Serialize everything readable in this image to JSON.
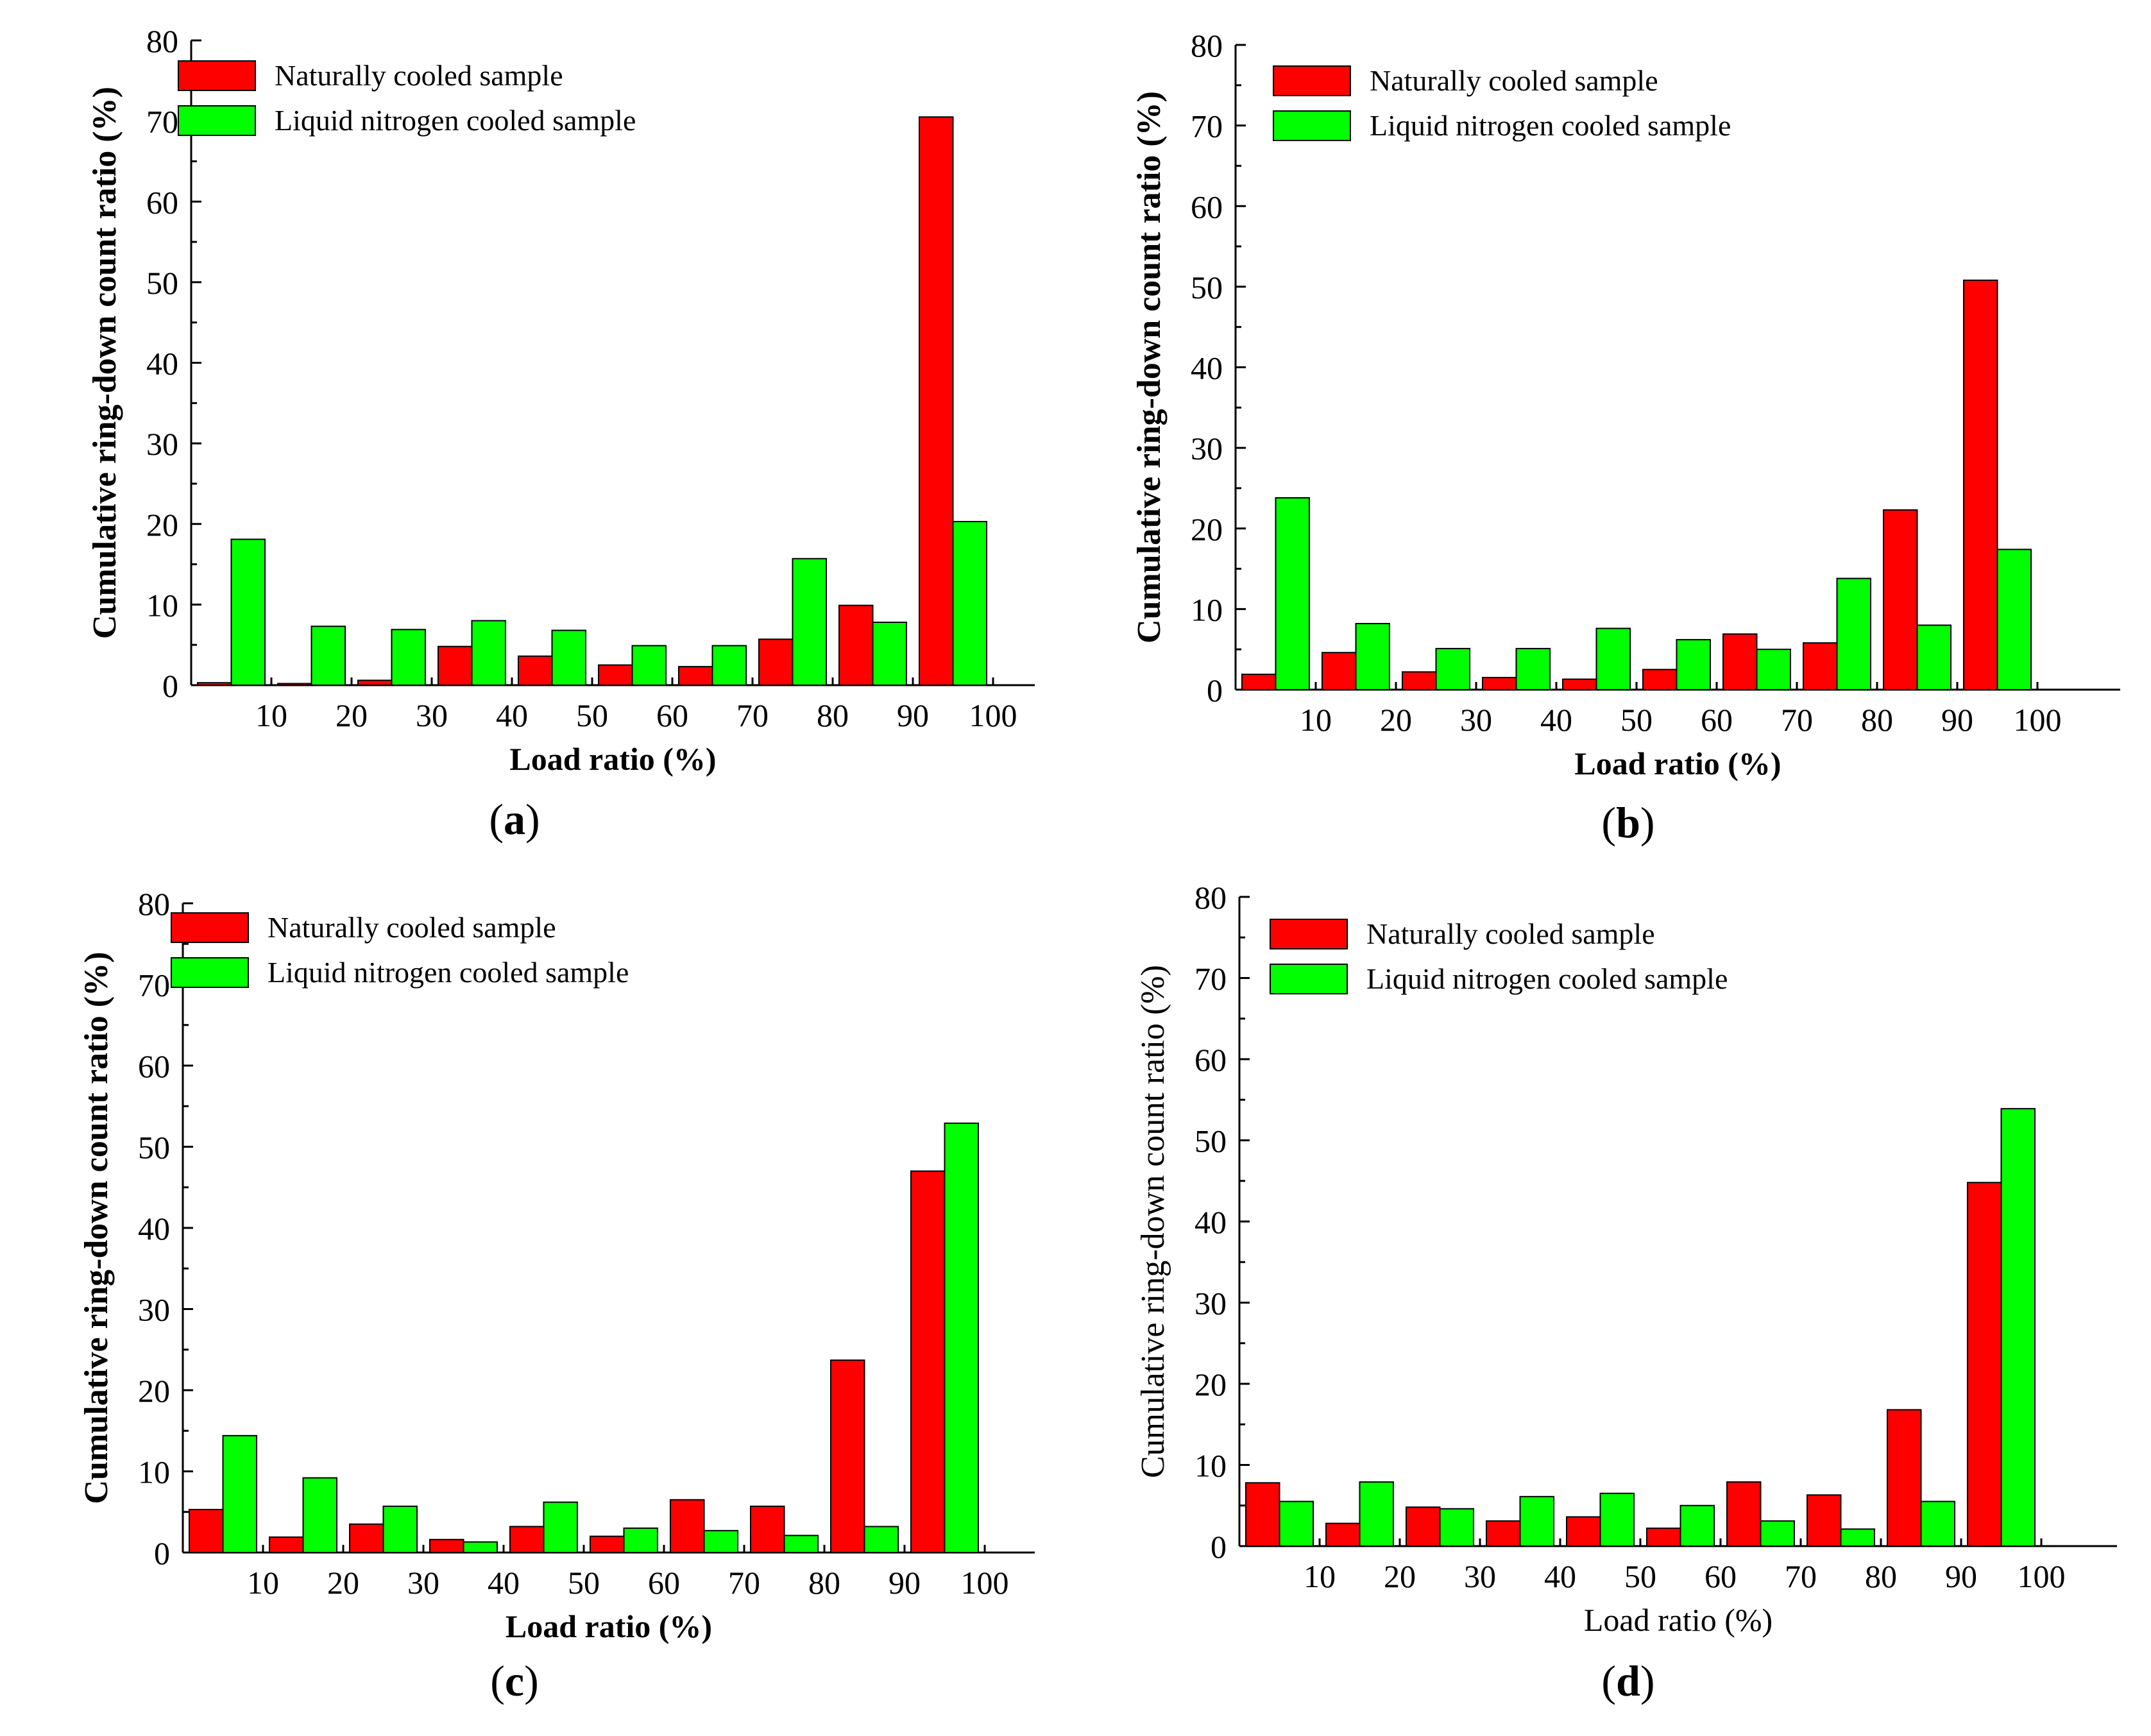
{
  "colors": {
    "naturally_cooled": "#ff0000",
    "liquid_nitrogen_cooled": "#00ff00"
  },
  "chart_data": [
    {
      "panel": "(a)",
      "type": "bar",
      "ylabel": "Cumulative ring-down count ratio (%)",
      "xlabel": "Load ratio (%)",
      "label_weight": "bold",
      "ylim": [
        0,
        80
      ],
      "yticks": [
        0,
        10,
        20,
        30,
        40,
        50,
        60,
        70,
        80
      ],
      "xticks": [
        "10",
        "20",
        "30",
        "40",
        "50",
        "60",
        "70",
        "80",
        "90",
        "100"
      ],
      "series": [
        {
          "name": "Naturally cooled sample",
          "color": "#ff0000",
          "values": [
            0.3,
            0.2,
            0.6,
            4.8,
            3.6,
            2.5,
            2.3,
            5.7,
            9.9,
            70.5
          ]
        },
        {
          "name": "Liquid nitrogen cooled sample",
          "color": "#00ff00",
          "values": [
            18.1,
            7.3,
            6.9,
            8.0,
            6.8,
            4.9,
            4.9,
            15.7,
            7.8,
            20.3
          ]
        }
      ]
    },
    {
      "panel": "(b)",
      "type": "bar",
      "ylabel": "Cumulative ring-down count ratio (%)",
      "xlabel": "Load ratio (%)",
      "label_weight": "bold",
      "ylim": [
        0,
        80
      ],
      "yticks": [
        0,
        10,
        20,
        30,
        40,
        50,
        60,
        70,
        80
      ],
      "xticks": [
        "10",
        "20",
        "30",
        "40",
        "50",
        "60",
        "70",
        "80",
        "90",
        "100"
      ],
      "series": [
        {
          "name": "Naturally cooled sample",
          "color": "#ff0000",
          "values": [
            1.9,
            4.6,
            2.2,
            1.5,
            1.3,
            2.5,
            6.9,
            5.8,
            22.3,
            50.8
          ]
        },
        {
          "name": "Liquid nitrogen cooled sample",
          "color": "#00ff00",
          "values": [
            23.8,
            8.2,
            5.1,
            5.1,
            7.6,
            6.2,
            5.0,
            13.8,
            8.0,
            17.4
          ]
        }
      ]
    },
    {
      "panel": "(c)",
      "type": "bar",
      "ylabel": "Cumulative ring-down count ratio (%)",
      "xlabel": "Load ratio (%)",
      "label_weight": "bold",
      "ylim": [
        0,
        80
      ],
      "yticks": [
        0,
        10,
        20,
        30,
        40,
        50,
        60,
        70,
        80
      ],
      "xticks": [
        "10",
        "20",
        "30",
        "40",
        "50",
        "60",
        "70",
        "80",
        "90",
        "100"
      ],
      "series": [
        {
          "name": "Naturally cooled sample",
          "color": "#ff0000",
          "values": [
            5.3,
            1.9,
            3.5,
            1.6,
            3.2,
            2.0,
            6.5,
            5.7,
            23.7,
            47.0
          ]
        },
        {
          "name": "Liquid nitrogen cooled sample",
          "color": "#00ff00",
          "values": [
            14.4,
            9.2,
            5.7,
            1.3,
            6.2,
            3.0,
            2.7,
            2.1,
            3.2,
            52.9
          ]
        }
      ]
    },
    {
      "panel": "(d)",
      "type": "bar",
      "ylabel": "Cumulative ring-down count ratio (%)",
      "xlabel": "Load ratio (%)",
      "label_weight": "normal",
      "ylim": [
        0,
        80
      ],
      "yticks": [
        0,
        10,
        20,
        30,
        40,
        50,
        60,
        70,
        80
      ],
      "xticks": [
        "10",
        "20",
        "30",
        "40",
        "50",
        "60",
        "70",
        "80",
        "90",
        "100"
      ],
      "series": [
        {
          "name": "Naturally cooled sample",
          "color": "#ff0000",
          "values": [
            7.8,
            2.8,
            4.8,
            3.1,
            3.6,
            2.2,
            7.9,
            6.3,
            16.8,
            44.8
          ]
        },
        {
          "name": "Liquid nitrogen cooled sample",
          "color": "#00ff00",
          "values": [
            5.5,
            7.9,
            4.6,
            6.1,
            6.5,
            5.0,
            3.1,
            2.1,
            5.5,
            53.9
          ]
        }
      ]
    }
  ]
}
